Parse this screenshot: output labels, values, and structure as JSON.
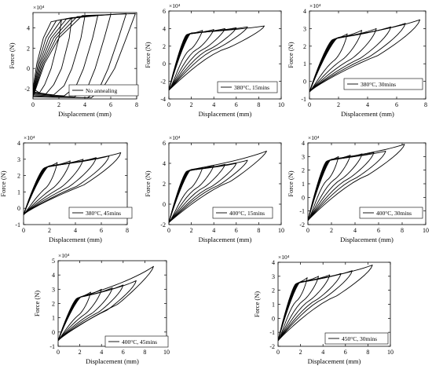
{
  "figure": {
    "units": "Force (N) vs Displacement (mm)",
    "exponent_label": "×10⁴"
  },
  "chart_data": [
    {
      "type": "line",
      "legend": "No annealing",
      "xlabel": "Displacement (mm)",
      "ylabel": "Force (N)",
      "multiplier": "×10⁴",
      "xlim": [
        0,
        8
      ],
      "ylim": [
        -3,
        5.5
      ],
      "xticks": [
        0,
        2,
        4,
        6,
        8
      ],
      "yticks": [
        -2,
        0,
        2,
        4
      ],
      "mode": "hysteresis",
      "series": [
        {
          "points": [
            [
              0,
              -2
            ],
            [
              0.3,
              0.5
            ],
            [
              0.8,
              3
            ],
            [
              1.4,
              4.6
            ],
            [
              2.2,
              4.8
            ],
            [
              2,
              3
            ],
            [
              1.4,
              0
            ],
            [
              0.9,
              -1.6
            ],
            [
              0.5,
              -2.4
            ],
            [
              0,
              -2
            ]
          ]
        },
        {
          "points": [
            [
              0,
              -2.3
            ],
            [
              0.4,
              0.5
            ],
            [
              1,
              3
            ],
            [
              1.8,
              4.7
            ],
            [
              3,
              5
            ],
            [
              2.8,
              3
            ],
            [
              2.2,
              0
            ],
            [
              1.6,
              -1.6
            ],
            [
              1,
              -2.5
            ],
            [
              0,
              -2.3
            ]
          ]
        },
        {
          "points": [
            [
              0,
              -2.4
            ],
            [
              0.5,
              0.5
            ],
            [
              1.2,
              3
            ],
            [
              2.2,
              4.8
            ],
            [
              4,
              5.1
            ],
            [
              3.7,
              3
            ],
            [
              3,
              0
            ],
            [
              2.4,
              -1.7
            ],
            [
              1.6,
              -2.6
            ],
            [
              0,
              -2.4
            ]
          ]
        },
        {
          "points": [
            [
              0,
              -2.5
            ],
            [
              0.6,
              0.5
            ],
            [
              1.4,
              3
            ],
            [
              2.6,
              4.9
            ],
            [
              5,
              5.2
            ],
            [
              4.6,
              3
            ],
            [
              3.9,
              0
            ],
            [
              3.3,
              -1.8
            ],
            [
              2.4,
              -2.7
            ],
            [
              0,
              -2.5
            ]
          ]
        },
        {
          "points": [
            [
              0,
              -2.6
            ],
            [
              0.7,
              0.5
            ],
            [
              1.6,
              3
            ],
            [
              3,
              5
            ],
            [
              6,
              5.3
            ],
            [
              5.5,
              3
            ],
            [
              4.8,
              0
            ],
            [
              4.2,
              -1.9
            ],
            [
              3.2,
              -2.8
            ],
            [
              0,
              -2.6
            ]
          ]
        },
        {
          "points": [
            [
              0,
              -2.7
            ],
            [
              0.8,
              0.5
            ],
            [
              1.8,
              3
            ],
            [
              3.4,
              5.1
            ],
            [
              7.2,
              5.4
            ],
            [
              6.6,
              3
            ],
            [
              5.8,
              0
            ],
            [
              5.1,
              -2
            ],
            [
              4.2,
              -2.9
            ],
            [
              0,
              -2.7
            ]
          ]
        },
        {
          "points": [
            [
              0,
              -2.8
            ],
            [
              0.9,
              0.5
            ],
            [
              2,
              3
            ],
            [
              3.8,
              5.2
            ],
            [
              7.9,
              5.4
            ],
            [
              7.2,
              3
            ],
            [
              6.3,
              0
            ],
            [
              5.4,
              -1.9
            ],
            [
              4.5,
              -2.9
            ],
            [
              0,
              -2.8
            ]
          ]
        }
      ]
    },
    {
      "type": "line",
      "legend": "380°C, 15mins",
      "xlabel": "Displacement (mm)",
      "ylabel": "Force (N)",
      "multiplier": "×10⁴",
      "xlim": [
        0,
        10
      ],
      "ylim": [
        -4,
        6
      ],
      "xticks": [
        0,
        2,
        4,
        6,
        8,
        10
      ],
      "yticks": [
        -4,
        -2,
        0,
        2,
        4,
        6
      ],
      "mode": "fan",
      "origin": [
        0,
        -3
      ],
      "yield": [
        2,
        3.5
      ],
      "peaks": [
        [
          3,
          3.8
        ],
        [
          4,
          3.9
        ],
        [
          5,
          4.0
        ],
        [
          6,
          4.1
        ],
        [
          7,
          4.2
        ],
        [
          8.5,
          4.3
        ]
      ]
    },
    {
      "type": "line",
      "legend": "380°C, 30mins",
      "xlabel": "Displacement (mm)",
      "ylabel": "Force (N)",
      "multiplier": "×10⁴",
      "xlim": [
        0,
        8
      ],
      "ylim": [
        -1,
        4
      ],
      "xticks": [
        0,
        2,
        4,
        6,
        8
      ],
      "yticks": [
        -1,
        0,
        1,
        2,
        3,
        4
      ],
      "mode": "fan",
      "origin": [
        0,
        -0.6
      ],
      "yield": [
        2,
        2.5
      ],
      "peaks": [
        [
          2.6,
          2.7
        ],
        [
          3.6,
          2.9
        ],
        [
          4.6,
          3.0
        ],
        [
          5.6,
          3.1
        ],
        [
          6.6,
          3.3
        ],
        [
          7.6,
          3.5
        ]
      ]
    },
    {
      "type": "line",
      "legend": "380°C, 45mins",
      "xlabel": "Displacement (mm)",
      "ylabel": "Force (N)",
      "multiplier": "×10⁴",
      "xlim": [
        0,
        8
      ],
      "ylim": [
        -1,
        4
      ],
      "xticks": [
        0,
        2,
        4,
        6,
        8
      ],
      "yticks": [
        -1,
        0,
        1,
        2,
        3,
        4
      ],
      "mode": "fan",
      "origin": [
        0,
        -0.4
      ],
      "yield": [
        2,
        2.6
      ],
      "peaks": [
        [
          2.6,
          2.8
        ],
        [
          3.6,
          2.9
        ],
        [
          4.6,
          3.0
        ],
        [
          5.6,
          3.1
        ],
        [
          6.6,
          3.2
        ],
        [
          7.5,
          3.4
        ]
      ]
    },
    {
      "type": "line",
      "legend": "400°C, 15mins",
      "xlabel": "Displacement (mm)",
      "ylabel": "Force (N)",
      "multiplier": "×10⁴",
      "xlim": [
        0,
        10
      ],
      "ylim": [
        -2,
        6
      ],
      "xticks": [
        0,
        2,
        4,
        6,
        8,
        10
      ],
      "yticks": [
        -2,
        0,
        2,
        4,
        6
      ],
      "mode": "fan",
      "origin": [
        0,
        -1.8
      ],
      "yield": [
        2,
        3.4
      ],
      "peaks": [
        [
          3,
          3.6
        ],
        [
          4,
          3.8
        ],
        [
          5,
          3.9
        ],
        [
          6,
          4.0
        ],
        [
          7,
          4.3
        ],
        [
          8.7,
          5.2
        ]
      ]
    },
    {
      "type": "line",
      "legend": "400°C, 30mins",
      "xlabel": "Displacement (mm)",
      "ylabel": "Force (N)",
      "multiplier": "×10⁴",
      "xlim": [
        0,
        10
      ],
      "ylim": [
        -2,
        4
      ],
      "xticks": [
        0,
        2,
        4,
        6,
        8,
        10
      ],
      "yticks": [
        -2,
        -1,
        0,
        1,
        2,
        3,
        4
      ],
      "mode": "fan",
      "origin": [
        0,
        -1.7
      ],
      "yield": [
        2,
        2.8
      ],
      "peaks": [
        [
          2.6,
          3.0
        ],
        [
          3.6,
          3.1
        ],
        [
          4.6,
          3.2
        ],
        [
          5.6,
          3.3
        ],
        [
          6.6,
          3.4
        ],
        [
          8.2,
          3.9
        ]
      ]
    },
    {
      "type": "line",
      "legend": "400°C, 45mins",
      "xlabel": "Displacement (mm)",
      "ylabel": "Force (N)",
      "multiplier": "×10⁴",
      "xlim": [
        0,
        10
      ],
      "ylim": [
        -1,
        5
      ],
      "xticks": [
        0,
        2,
        4,
        6,
        8,
        10
      ],
      "yticks": [
        -1,
        0,
        1,
        2,
        3,
        4,
        5
      ],
      "mode": "fan",
      "origin": [
        0,
        -0.6
      ],
      "yield": [
        2.2,
        2.5
      ],
      "peaks": [
        [
          3.0,
          2.8
        ],
        [
          4.0,
          3.0
        ],
        [
          5.0,
          3.1
        ],
        [
          6.0,
          3.3
        ],
        [
          7.2,
          3.6
        ],
        [
          8.8,
          4.6
        ]
      ]
    },
    {
      "type": "line",
      "legend": "450°C, 30mins",
      "xlabel": "Displacement (mm)",
      "ylabel": "Force (N)",
      "multiplier": "×10⁴",
      "xlim": [
        0,
        10
      ],
      "ylim": [
        -2,
        4
      ],
      "xticks": [
        0,
        2,
        4,
        6,
        8,
        10
      ],
      "yticks": [
        -2,
        -1,
        0,
        1,
        2,
        3,
        4
      ],
      "mode": "fan",
      "origin": [
        0,
        -1.6
      ],
      "yield": [
        2,
        2.6
      ],
      "peaks": [
        [
          2.6,
          2.9
        ],
        [
          3.6,
          3.0
        ],
        [
          4.6,
          3.1
        ],
        [
          5.6,
          3.2
        ],
        [
          6.6,
          3.4
        ],
        [
          8.4,
          3.8
        ]
      ]
    }
  ]
}
